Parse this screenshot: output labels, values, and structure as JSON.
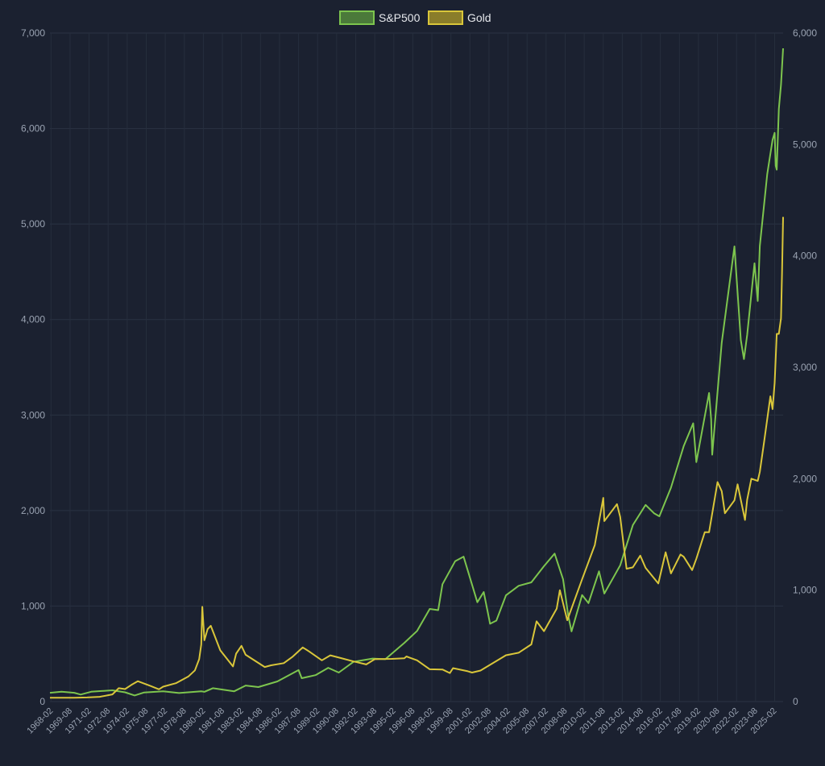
{
  "chart_data": {
    "type": "line",
    "title": "",
    "xlabel": "",
    "ylabel": "",
    "ylim": [
      0,
      7000
    ],
    "y2lim": [
      0,
      6000
    ],
    "y_ticks": [
      "0",
      "1,000",
      "2,000",
      "3,000",
      "4,000",
      "5,000",
      "6,000",
      "7,000"
    ],
    "y2_ticks": [
      "0",
      "1,000",
      "2,000",
      "3,000",
      "4,000",
      "5,000",
      "6,000"
    ],
    "x_tick_labels": [
      "1968-02",
      "1969-08",
      "1971-02",
      "1972-08",
      "1974-02",
      "1975-08",
      "1977-02",
      "1978-08",
      "1980-02",
      "1981-08",
      "1983-02",
      "1984-08",
      "1986-02",
      "1987-08",
      "1989-02",
      "1990-08",
      "1992-02",
      "1993-08",
      "1995-02",
      "1996-08",
      "1998-02",
      "1999-08",
      "2001-02",
      "2002-08",
      "2004-02",
      "2005-08",
      "2007-02",
      "2008-08",
      "2010-02",
      "2011-08",
      "2013-02",
      "2014-08",
      "2016-02",
      "2017-08",
      "2019-02",
      "2020-08",
      "2022-02",
      "2023-08",
      "2025-02"
    ],
    "x_range": [
      "1968-01",
      "2025-10"
    ],
    "grid": true,
    "legend_position": "top-center",
    "series": [
      {
        "name": "S&P500",
        "axis": "left",
        "color": "#7dc54e",
        "fill": "#4b7a3a",
        "points": [
          [
            "1968-01",
            92
          ],
          [
            "1968-12",
            103
          ],
          [
            "1969-12",
            92
          ],
          [
            "1970-06",
            73
          ],
          [
            "1971-04",
            103
          ],
          [
            "1972-12",
            118
          ],
          [
            "1973-12",
            97
          ],
          [
            "1974-09",
            64
          ],
          [
            "1975-06",
            95
          ],
          [
            "1976-12",
            107
          ],
          [
            "1978-03",
            89
          ],
          [
            "1979-12",
            107
          ],
          [
            "1980-03",
            102
          ],
          [
            "1980-11",
            140
          ],
          [
            "1982-07",
            107
          ],
          [
            "1983-06",
            168
          ],
          [
            "1984-06",
            152
          ],
          [
            "1985-12",
            211
          ],
          [
            "1987-08",
            330
          ],
          [
            "1987-11",
            245
          ],
          [
            "1988-12",
            277
          ],
          [
            "1989-12",
            353
          ],
          [
            "1990-10",
            304
          ],
          [
            "1991-12",
            417
          ],
          [
            "1993-06",
            450
          ],
          [
            "1994-06",
            444
          ],
          [
            "1995-12",
            615
          ],
          [
            "1996-12",
            740
          ],
          [
            "1997-12",
            970
          ],
          [
            "1998-08",
            957
          ],
          [
            "1998-12",
            1229
          ],
          [
            "1999-12",
            1469
          ],
          [
            "2000-08",
            1517
          ],
          [
            "2001-09",
            1040
          ],
          [
            "2002-03",
            1147
          ],
          [
            "2002-09",
            815
          ],
          [
            "2003-03",
            848
          ],
          [
            "2003-12",
            1112
          ],
          [
            "2004-12",
            1212
          ],
          [
            "2005-12",
            1248
          ],
          [
            "2006-12",
            1418
          ],
          [
            "2007-10",
            1549
          ],
          [
            "2008-06",
            1280
          ],
          [
            "2008-11",
            896
          ],
          [
            "2009-02",
            735
          ],
          [
            "2009-12",
            1115
          ],
          [
            "2010-06",
            1031
          ],
          [
            "2011-04",
            1364
          ],
          [
            "2011-09",
            1131
          ],
          [
            "2012-12",
            1426
          ],
          [
            "2013-12",
            1848
          ],
          [
            "2014-12",
            2059
          ],
          [
            "2015-08",
            1972
          ],
          [
            "2016-01",
            1940
          ],
          [
            "2016-12",
            2239
          ],
          [
            "2017-12",
            2674
          ],
          [
            "2018-09",
            2914
          ],
          [
            "2018-12",
            2507
          ],
          [
            "2019-12",
            3231
          ],
          [
            "2020-02",
            2954
          ],
          [
            "2020-03",
            2585
          ],
          [
            "2020-12",
            3756
          ],
          [
            "2021-12",
            4766
          ],
          [
            "2022-06",
            3785
          ],
          [
            "2022-09",
            3586
          ],
          [
            "2022-12",
            3840
          ],
          [
            "2023-07",
            4589
          ],
          [
            "2023-10",
            4194
          ],
          [
            "2023-12",
            4770
          ],
          [
            "2024-07",
            5522
          ],
          [
            "2024-12",
            5882
          ],
          [
            "2025-02",
            5955
          ],
          [
            "2025-03",
            5612
          ],
          [
            "2025-04",
            5570
          ],
          [
            "2025-06",
            6205
          ],
          [
            "2025-08",
            6460
          ],
          [
            "2025-10",
            6840
          ]
        ]
      },
      {
        "name": "Gold",
        "axis": "right",
        "color": "#d9c63a",
        "fill": "#8a7d2a",
        "points": [
          [
            "1968-01",
            35
          ],
          [
            "1969-12",
            35
          ],
          [
            "1970-12",
            37
          ],
          [
            "1971-12",
            43
          ],
          [
            "1972-12",
            64
          ],
          [
            "1973-06",
            120
          ],
          [
            "1973-12",
            112
          ],
          [
            "1974-06",
            150
          ],
          [
            "1974-12",
            183
          ],
          [
            "1975-12",
            140
          ],
          [
            "1976-08",
            110
          ],
          [
            "1976-12",
            134
          ],
          [
            "1977-12",
            165
          ],
          [
            "1978-12",
            226
          ],
          [
            "1979-06",
            280
          ],
          [
            "1979-10",
            380
          ],
          [
            "1979-12",
            512
          ],
          [
            "1980-01",
            850
          ],
          [
            "1980-03",
            550
          ],
          [
            "1980-06",
            650
          ],
          [
            "1980-09",
            680
          ],
          [
            "1981-06",
            460
          ],
          [
            "1982-06",
            315
          ],
          [
            "1982-09",
            430
          ],
          [
            "1983-02",
            500
          ],
          [
            "1983-06",
            420
          ],
          [
            "1984-12",
            310
          ],
          [
            "1985-06",
            325
          ],
          [
            "1986-06",
            345
          ],
          [
            "1987-02",
            400
          ],
          [
            "1987-12",
            486
          ],
          [
            "1988-06",
            450
          ],
          [
            "1989-06",
            370
          ],
          [
            "1990-02",
            415
          ],
          [
            "1990-12",
            390
          ],
          [
            "1991-12",
            360
          ],
          [
            "1992-12",
            333
          ],
          [
            "1993-08",
            380
          ],
          [
            "1994-12",
            383
          ],
          [
            "1995-12",
            388
          ],
          [
            "1996-02",
            405
          ],
          [
            "1996-12",
            370
          ],
          [
            "1997-12",
            290
          ],
          [
            "1998-12",
            288
          ],
          [
            "1999-07",
            256
          ],
          [
            "1999-10",
            300
          ],
          [
            "2000-12",
            272
          ],
          [
            "2001-04",
            260
          ],
          [
            "2001-12",
            278
          ],
          [
            "2002-12",
            347
          ],
          [
            "2003-12",
            416
          ],
          [
            "2004-12",
            438
          ],
          [
            "2005-12",
            513
          ],
          [
            "2006-05",
            720
          ],
          [
            "2006-12",
            632
          ],
          [
            "2007-12",
            834
          ],
          [
            "2008-03",
            1000
          ],
          [
            "2008-10",
            730
          ],
          [
            "2009-12",
            1097
          ],
          [
            "2010-12",
            1405
          ],
          [
            "2011-08",
            1828
          ],
          [
            "2011-09",
            1620
          ],
          [
            "2012-09",
            1772
          ],
          [
            "2012-12",
            1657
          ],
          [
            "2013-06",
            1192
          ],
          [
            "2013-12",
            1204
          ],
          [
            "2014-07",
            1310
          ],
          [
            "2014-12",
            1200
          ],
          [
            "2015-12",
            1060
          ],
          [
            "2016-07",
            1340
          ],
          [
            "2016-12",
            1150
          ],
          [
            "2017-09",
            1320
          ],
          [
            "2017-12",
            1300
          ],
          [
            "2018-08",
            1180
          ],
          [
            "2018-12",
            1282
          ],
          [
            "2019-08",
            1520
          ],
          [
            "2019-12",
            1520
          ],
          [
            "2020-08",
            1970
          ],
          [
            "2020-12",
            1888
          ],
          [
            "2021-03",
            1690
          ],
          [
            "2021-12",
            1806
          ],
          [
            "2022-03",
            1950
          ],
          [
            "2022-10",
            1630
          ],
          [
            "2022-12",
            1812
          ],
          [
            "2023-04",
            2000
          ],
          [
            "2023-10",
            1980
          ],
          [
            "2023-12",
            2062
          ],
          [
            "2024-04",
            2330
          ],
          [
            "2024-10",
            2740
          ],
          [
            "2024-12",
            2625
          ],
          [
            "2025-02",
            2860
          ],
          [
            "2025-04",
            3300
          ],
          [
            "2025-06",
            3300
          ],
          [
            "2025-08",
            3440
          ],
          [
            "2025-09",
            3860
          ],
          [
            "2025-10",
            4350
          ]
        ]
      }
    ]
  }
}
